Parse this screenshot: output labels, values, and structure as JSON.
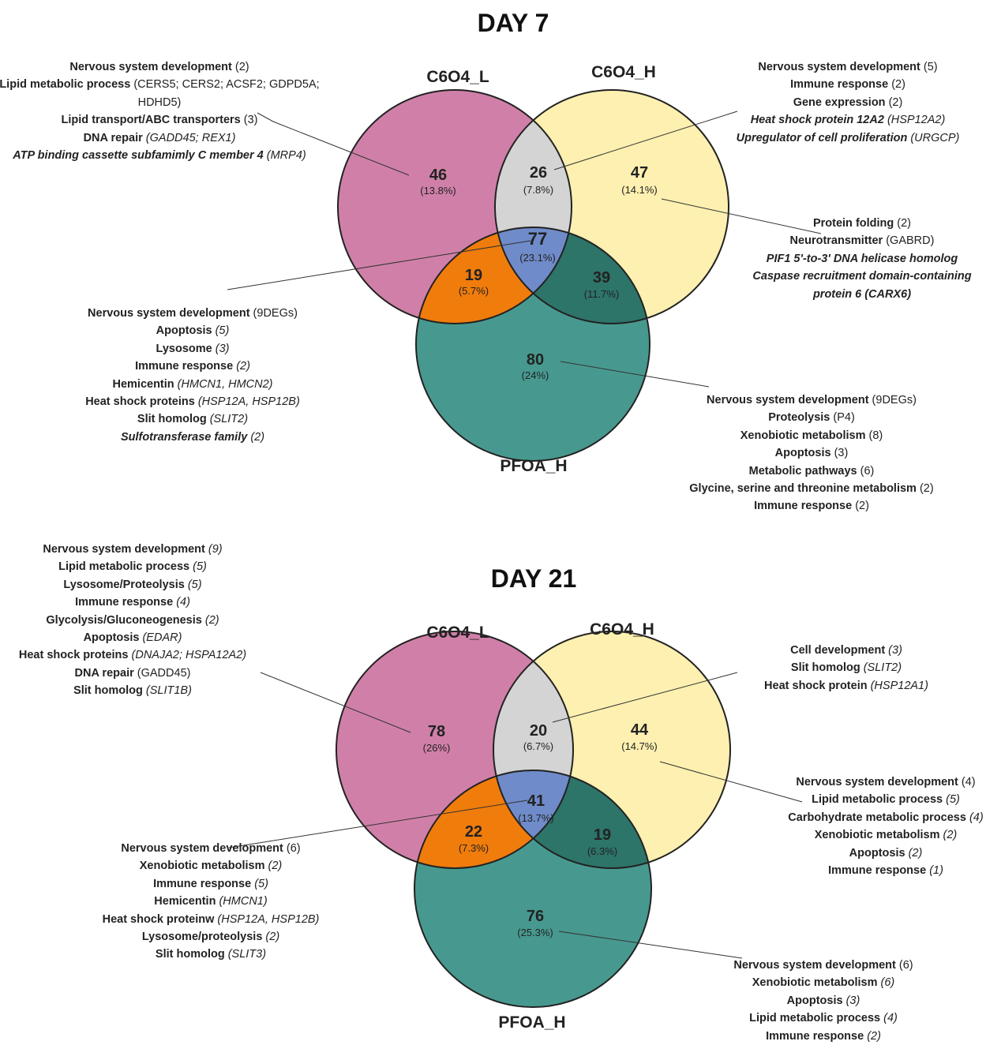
{
  "colors": {
    "c6o4_l": "#d080a8",
    "c6o4_h": "#fdf0b0",
    "pfoa_h": "#47998f",
    "l_h": "#d4d4d4",
    "l_p": "#f07c0c",
    "h_p": "#2d7469",
    "all": "#6f8bc9"
  },
  "day7": {
    "title": "DAY 7",
    "labels": {
      "l": "C6O4_L",
      "h": "C6O4_H",
      "p": "PFOA_H"
    },
    "regions": {
      "only_l": {
        "count": "46",
        "pct": "(13.8%)"
      },
      "l_h": {
        "count": "26",
        "pct": "(7.8%)"
      },
      "only_h": {
        "count": "47",
        "pct": "(14.1%)"
      },
      "all": {
        "count": "77",
        "pct": "(23.1%)"
      },
      "l_p": {
        "count": "19",
        "pct": "(5.7%)"
      },
      "h_p": {
        "count": "39",
        "pct": "(11.7%)"
      },
      "only_p": {
        "count": "80",
        "pct": "(24%)"
      }
    },
    "annotations": {
      "top_left": [
        {
          "term": "Nervous system development",
          "detail": " (2)",
          "italic": false
        },
        {
          "term": "Lipid metabolic process",
          "detail": "  (CERS5; CERS2; ACSF2; GDPD5A;",
          "italic": false
        },
        {
          "term": "",
          "detail": "HDHD5)",
          "italic": false
        },
        {
          "term": "Lipid transport/ABC transporters",
          "detail": " (3)",
          "italic": false
        },
        {
          "term": "DNA repair",
          "detail": " (GADD45; REX1)",
          "italic": true
        },
        {
          "term": "ATP binding cassette subfamimly C member 4",
          "detail": " (MRP4)",
          "italic": true,
          "termItalic": true
        }
      ],
      "top_right": [
        {
          "term": "Nervous system development",
          "detail": " (5)",
          "italic": false
        },
        {
          "term": "Immune response",
          "detail": " (2)",
          "italic": false
        },
        {
          "term": "Gene expression",
          "detail": " (2)",
          "italic": false
        },
        {
          "term": "Heat shock protein 12A2",
          "detail": "  (HSP12A2)",
          "italic": true,
          "termItalic": true
        },
        {
          "term": "Upregulator of cell proliferation",
          "detail": " (URGCP)",
          "italic": true,
          "termItalic": true
        }
      ],
      "mid_right": [
        {
          "term": "Protein folding",
          "detail": " (2)",
          "italic": false
        },
        {
          "term": "Neurotransmitter",
          "detail": " (GABRD)",
          "italic": false
        },
        {
          "term": "PIF1 5'-to-3' DNA helicase homolog",
          "detail": "",
          "italic": true,
          "termItalic": true
        },
        {
          "term": "Caspase recruitment domain-containing",
          "detail": "",
          "italic": true,
          "termItalic": true
        },
        {
          "term": "protein 6 (CARX6)",
          "detail": "",
          "italic": true,
          "termItalic": true
        }
      ],
      "mid_left": [
        {
          "term": "Nervous system development",
          "detail": " (9DEGs)",
          "italic": false
        },
        {
          "term": "Apoptosis",
          "detail": " (5)",
          "italic": true
        },
        {
          "term": "Lysosome",
          "detail": " (3)",
          "italic": true
        },
        {
          "term": "Immune response",
          "detail": " (2)",
          "italic": true
        },
        {
          "term": "Hemicentin",
          "detail": " (HMCN1, HMCN2)",
          "italic": true
        },
        {
          "term": "Heat shock proteins",
          "detail": " (HSP12A, HSP12B)",
          "italic": true
        },
        {
          "term": "Slit homolog",
          "detail": " (SLIT2)",
          "italic": true
        },
        {
          "term": "Sulfotransferase family",
          "detail": " (2)",
          "italic": true,
          "termItalic": true
        }
      ],
      "bottom_right": [
        {
          "term": "Nervous system development",
          "detail": " (9DEGs)",
          "italic": false
        },
        {
          "term": "Proteolysis",
          "detail": " (P4)",
          "italic": false
        },
        {
          "term": "Xenobiotic metabolism",
          "detail": " (8)",
          "italic": false
        },
        {
          "term": "Apoptosis",
          "detail": " (3)",
          "italic": false
        },
        {
          "term": "Metabolic pathways",
          "detail": " (6)",
          "italic": false
        },
        {
          "term": "Glycine, serine and threonine metabolism",
          "detail": " (2)",
          "italic": false
        },
        {
          "term": "Immune response",
          "detail": " (2)",
          "italic": false
        }
      ]
    }
  },
  "day21": {
    "title": "DAY 21",
    "labels": {
      "l": "C6O4_L",
      "h": "C6O4_H",
      "p": "PFOA_H"
    },
    "regions": {
      "only_l": {
        "count": "78",
        "pct": "(26%)"
      },
      "l_h": {
        "count": "20",
        "pct": "(6.7%)"
      },
      "only_h": {
        "count": "44",
        "pct": "(14.7%)"
      },
      "all": {
        "count": "41",
        "pct": "(13.7%)"
      },
      "l_p": {
        "count": "22",
        "pct": "(7.3%)"
      },
      "h_p": {
        "count": "19",
        "pct": "(6.3%)"
      },
      "only_p": {
        "count": "76",
        "pct": "(25.3%)"
      }
    },
    "annotations": {
      "top_left": [
        {
          "term": "Nervous system development",
          "detail": " (9)",
          "italic": true
        },
        {
          "term": "Lipid metabolic process",
          "detail": " (5)",
          "italic": true
        },
        {
          "term": "Lysosome/Proteolysis",
          "detail": " (5)",
          "italic": true
        },
        {
          "term": "Immune response",
          "detail": "  (4)",
          "italic": true
        },
        {
          "term": "Glycolysis/Gluconeogenesis",
          "detail": " (2)",
          "italic": true
        },
        {
          "term": "Apoptosis",
          "detail": " (EDAR)",
          "italic": true
        },
        {
          "term": "Heat shock proteins",
          "detail": " (DNAJA2; HSPA12A2)",
          "italic": true
        },
        {
          "term": "DNA repair",
          "detail": " (GADD45)",
          "italic": false
        },
        {
          "term": "Slit homolog",
          "detail": " (SLIT1B)",
          "italic": true
        }
      ],
      "top_right": [
        {
          "term": "Cell development",
          "detail": " (3)",
          "italic": true
        },
        {
          "term": "Slit homolog",
          "detail": " (SLIT2)",
          "italic": true
        },
        {
          "term": "Heat shock protein",
          "detail": " (HSP12A1)",
          "italic": true
        }
      ],
      "mid_right": [
        {
          "term": "Nervous system development",
          "detail": " (4)",
          "italic": false
        },
        {
          "term": "Lipid metabolic process",
          "detail": "  (5)",
          "italic": true
        },
        {
          "term": "Carbohydrate metabolic process",
          "detail": " (4)",
          "italic": true
        },
        {
          "term": "Xenobiotic metabolism",
          "detail": " (2)",
          "italic": true
        },
        {
          "term": "Apoptosis",
          "detail": " (2)",
          "italic": true
        },
        {
          "term": "Immune response",
          "detail": "  (1)",
          "italic": true
        }
      ],
      "mid_left": [
        {
          "term": "Nervous system development",
          "detail": " (6)",
          "italic": false
        },
        {
          "term": "Xenobiotic metabolism",
          "detail": " (2)",
          "italic": true
        },
        {
          "term": "Immune response",
          "detail": " (5)",
          "italic": true
        },
        {
          "term": "Hemicentin",
          "detail": " (HMCN1)",
          "italic": true
        },
        {
          "term": "Heat shock proteinw",
          "detail": " (HSP12A, HSP12B)",
          "italic": true
        },
        {
          "term": "Lysosome/proteolysis",
          "detail": "  (2)",
          "italic": true
        },
        {
          "term": "Slit homolog",
          "detail": " (SLIT3)",
          "italic": true
        }
      ],
      "bottom_right": [
        {
          "term": "Nervous system development",
          "detail": " (6)",
          "italic": false
        },
        {
          "term": "Xenobiotic metabolism",
          "detail": " (6)",
          "italic": true
        },
        {
          "term": "Apoptosis",
          "detail": " (3)",
          "italic": true
        },
        {
          "term": "Lipid metabolic process",
          "detail": " (4)",
          "italic": true
        },
        {
          "term": "Immune response",
          "detail": " (2)",
          "italic": true
        }
      ]
    }
  }
}
